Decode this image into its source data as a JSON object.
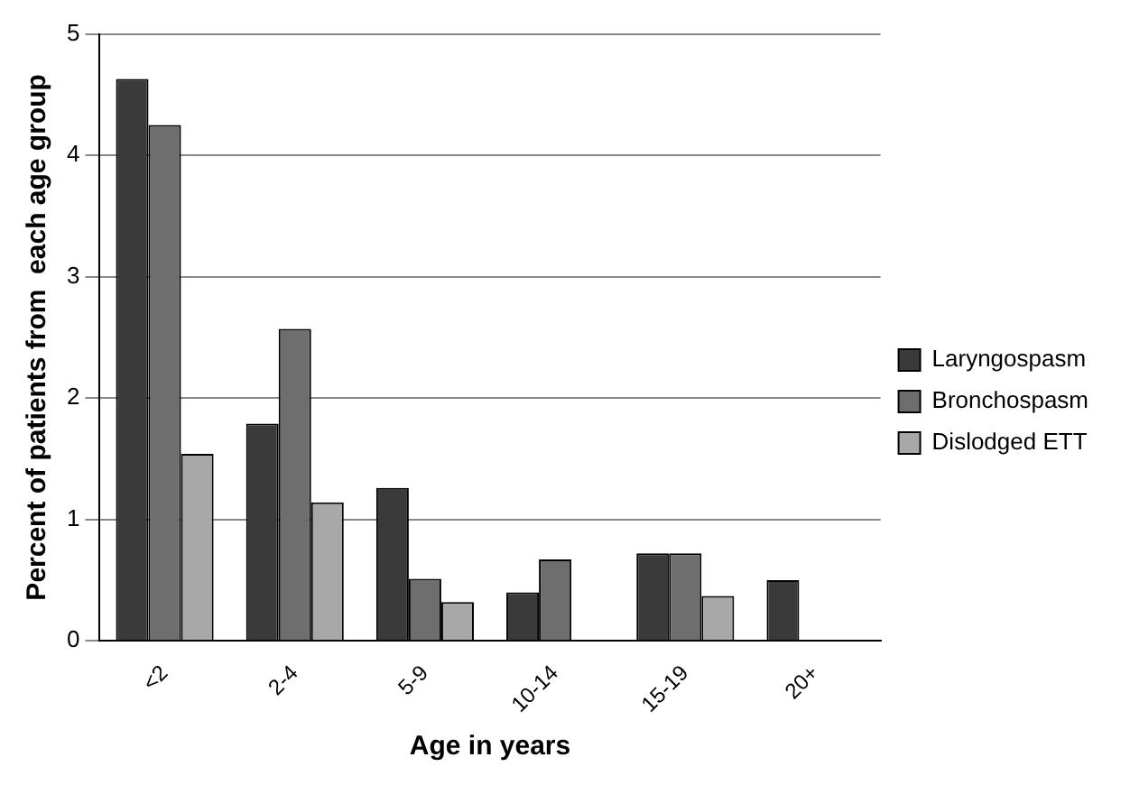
{
  "chart_data": {
    "type": "bar",
    "xlabel": "Age in years",
    "ylabel": "Percent of patients from  each age group",
    "categories": [
      "<2",
      "2-4",
      "5-9",
      "10-14",
      "15-19",
      "20+"
    ],
    "series": [
      {
        "name": "Laryngospasm",
        "color": "#3a3a3a",
        "values": [
          4.63,
          1.79,
          1.26,
          0.4,
          0.72,
          0.5
        ]
      },
      {
        "name": "Bronchospasm",
        "color": "#6e6e6e",
        "values": [
          4.25,
          2.57,
          0.51,
          0.67,
          0.72,
          null
        ]
      },
      {
        "name": "Dislodged ETT",
        "color": "#a8a8a8",
        "values": [
          1.54,
          1.14,
          0.32,
          null,
          0.37,
          null
        ]
      }
    ],
    "ylim": [
      0,
      5
    ],
    "yticks": [
      0,
      1,
      2,
      3,
      4,
      5
    ],
    "grid": "y",
    "legend": "right"
  }
}
